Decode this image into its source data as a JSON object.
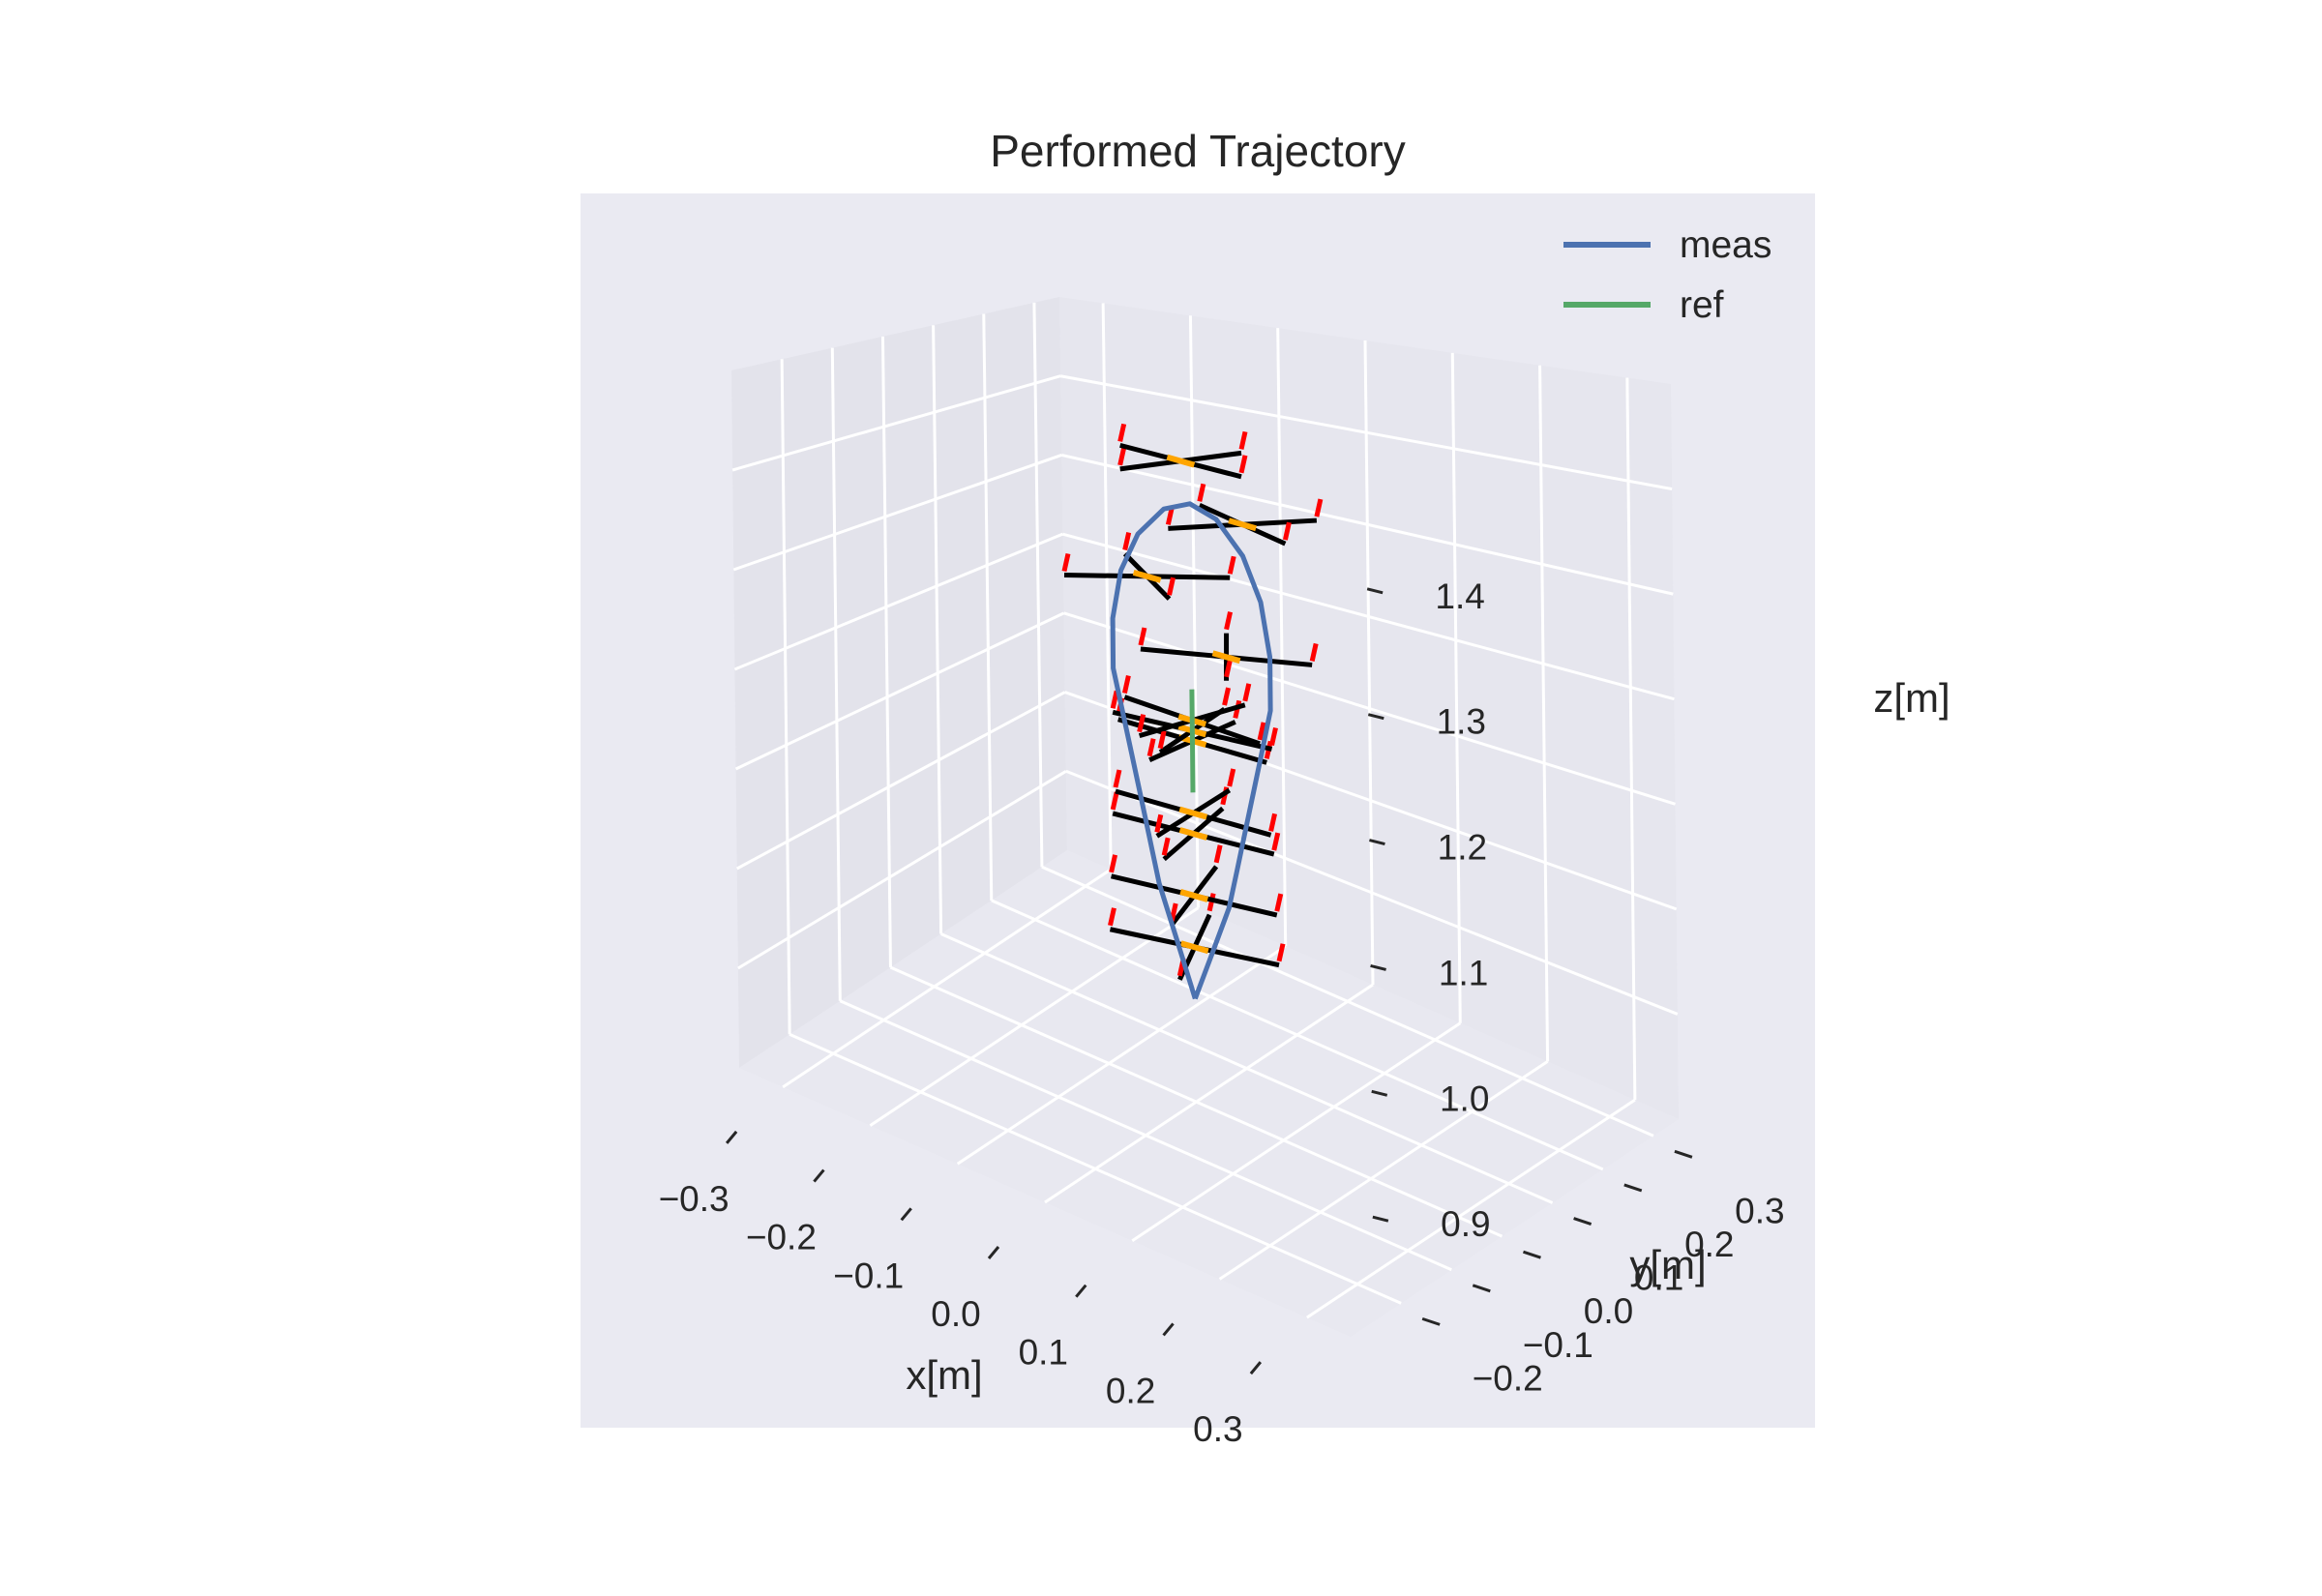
{
  "chart_data": {
    "type": "line3d",
    "title": "Performed Trajectory",
    "xlabel": "x[m]",
    "ylabel": "y[m]",
    "zlabel": "z[m]",
    "xlim": [
      -0.35,
      0.35
    ],
    "ylim": [
      -0.3,
      0.35
    ],
    "zlim": [
      0.8,
      1.5
    ],
    "xticks": [
      -0.3,
      -0.2,
      -0.1,
      0.0,
      0.1,
      0.2,
      0.3
    ],
    "xtick_labels": [
      "−0.3",
      "−0.2",
      "−0.1",
      "0.0",
      "0.1",
      "0.2",
      "0.3"
    ],
    "yticks": [
      -0.2,
      -0.1,
      0.0,
      0.1,
      0.2,
      0.3
    ],
    "ytick_labels": [
      "−0.2",
      "−0.1",
      "0.0",
      "0.1",
      "0.2",
      "0.3"
    ],
    "zticks": [
      0.9,
      1.0,
      1.1,
      1.2,
      1.3,
      1.4
    ],
    "ztick_labels": [
      "0.9",
      "1.0",
      "1.1",
      "1.2",
      "1.3",
      "1.4"
    ],
    "legend": [
      {
        "name": "meas",
        "color": "#4c72b0"
      },
      {
        "name": "ref",
        "color": "#55a868"
      }
    ],
    "legend_position": "top-right",
    "series": [
      {
        "name": "meas",
        "color": "#4c72b0",
        "x": [
          0.0,
          0.02,
          0.04,
          0.05,
          0.06,
          0.07,
          0.08,
          0.09,
          0.09,
          0.08,
          0.06,
          0.03,
          0.0,
          -0.03,
          -0.06,
          -0.08,
          -0.09,
          -0.09,
          -0.08,
          -0.07,
          -0.06,
          -0.05,
          -0.04,
          -0.02,
          0.0
        ],
        "y": [
          0.0,
          0.0,
          0.0,
          0.0,
          0.0,
          0.0,
          0.0,
          0.0,
          0.0,
          0.0,
          0.0,
          0.0,
          0.0,
          0.0,
          0.0,
          0.0,
          0.0,
          0.0,
          0.0,
          0.0,
          0.0,
          0.0,
          0.0,
          0.0,
          0.0
        ],
        "z": [
          0.9,
          0.95,
          1.0,
          1.04,
          1.08,
          1.12,
          1.16,
          1.2,
          1.25,
          1.3,
          1.34,
          1.37,
          1.38,
          1.37,
          1.34,
          1.3,
          1.25,
          1.2,
          1.16,
          1.12,
          1.08,
          1.04,
          1.0,
          0.95,
          0.9
        ]
      },
      {
        "name": "ref",
        "color": "#55a868",
        "x": [
          0.0,
          0.0,
          0.0
        ],
        "y": [
          0.0,
          0.0,
          0.0
        ],
        "z": [
          1.1,
          1.15,
          1.2
        ]
      }
    ],
    "frames": [
      {
        "x": 0.0,
        "y": 0.0,
        "z": 0.95,
        "yaw": 20
      },
      {
        "x": 0.0,
        "y": 0.0,
        "z": 1.0,
        "yaw": 15
      },
      {
        "x": 0.0,
        "y": 0.0,
        "z": 1.06,
        "yaw": 10
      },
      {
        "x": 0.0,
        "y": 0.0,
        "z": 1.08,
        "yaw": 5
      },
      {
        "x": 0.0,
        "y": 0.0,
        "z": 1.15,
        "yaw": 0
      },
      {
        "x": 0.0,
        "y": 0.0,
        "z": 1.16,
        "yaw": 8
      },
      {
        "x": 0.0,
        "y": 0.0,
        "z": 1.17,
        "yaw": -8
      },
      {
        "x": 0.04,
        "y": 0.0,
        "z": 1.24,
        "yaw": 30
      },
      {
        "x": -0.05,
        "y": 0.0,
        "z": 1.3,
        "yaw": 45
      },
      {
        "x": 0.06,
        "y": 0.0,
        "z": 1.37,
        "yaw": 60
      },
      {
        "x": -0.01,
        "y": 0.0,
        "z": 1.42,
        "yaw": 75
      }
    ]
  }
}
